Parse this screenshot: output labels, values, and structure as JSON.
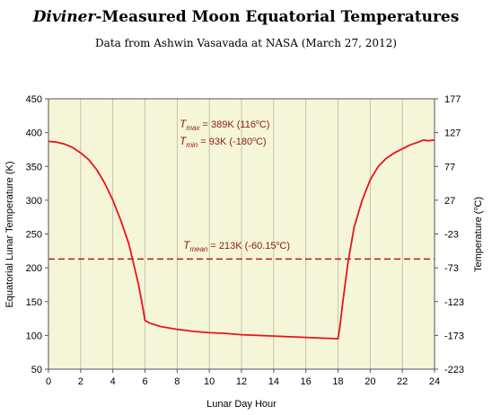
{
  "chart_data": {
    "type": "line",
    "title_italic": "Diviner",
    "title_rest": "-Measured Moon Equatorial Temperatures",
    "subtitle": "Data from Ashwin Vasavada at NASA (March 27, 2012)",
    "xlabel": "Lunar Day Hour",
    "ylabel": "Equatorial Lunar Temperature (K)",
    "ylabel_right_prefix": "Temperature (",
    "ylabel_right_degree": "o",
    "ylabel_right_suffix": "C)",
    "xlim": [
      0,
      24
    ],
    "ylim": [
      50,
      450
    ],
    "x_ticks": [
      "0",
      "2",
      "4",
      "6",
      "8",
      "10",
      "12",
      "14",
      "16",
      "18",
      "20",
      "22",
      "24"
    ],
    "y_ticks": [
      "50",
      "100",
      "150",
      "200",
      "250",
      "300",
      "350",
      "400",
      "450"
    ],
    "y2_ticks": [
      "-223",
      "-173",
      "-123",
      "-73",
      "-23",
      "27",
      "77",
      "127",
      "177"
    ],
    "grid": "vertical",
    "series": [
      {
        "color": "#e8141b",
        "x": [
          0,
          0.5,
          1,
          1.5,
          2,
          2.5,
          3,
          3.5,
          4,
          4.5,
          5,
          5.3,
          5.6,
          5.8,
          6,
          6.3,
          7,
          8,
          9,
          10,
          11,
          12,
          13,
          14,
          15,
          16,
          17,
          18,
          18.1,
          18.3,
          18.6,
          19,
          19.5,
          20,
          20.5,
          21,
          21.5,
          22,
          22.5,
          23,
          23.3,
          23.6,
          24
        ],
        "y": [
          387,
          386,
          383,
          378,
          370,
          360,
          345,
          325,
          300,
          270,
          235,
          205,
          175,
          150,
          122,
          118,
          113,
          109,
          106,
          104,
          103,
          101,
          100,
          99,
          98,
          97,
          96,
          95,
          110,
          150,
          205,
          260,
          300,
          330,
          350,
          362,
          370,
          376,
          382,
          386,
          389,
          388,
          389
        ]
      }
    ],
    "mean_line": {
      "value": 213,
      "color": "#b02020"
    },
    "annotations": {
      "tmax_T": "T",
      "tmax_sub": "max",
      "tmax_val": " = 389K (116",
      "tmax_deg": "o",
      "tmax_end": "C)",
      "tmin_T": "T",
      "tmin_sub": "min",
      "tmin_val": " = 93K (-180",
      "tmin_deg": "o",
      "tmin_end": "C)",
      "tmean_T": "T",
      "tmean_sub": "mean",
      "tmean_val": " = 213K (-60.15",
      "tmean_deg": "o",
      "tmean_end": "C)"
    },
    "colors": {
      "plot_bg": "#f5f5d8",
      "annotation": "#8b1a1a"
    }
  }
}
